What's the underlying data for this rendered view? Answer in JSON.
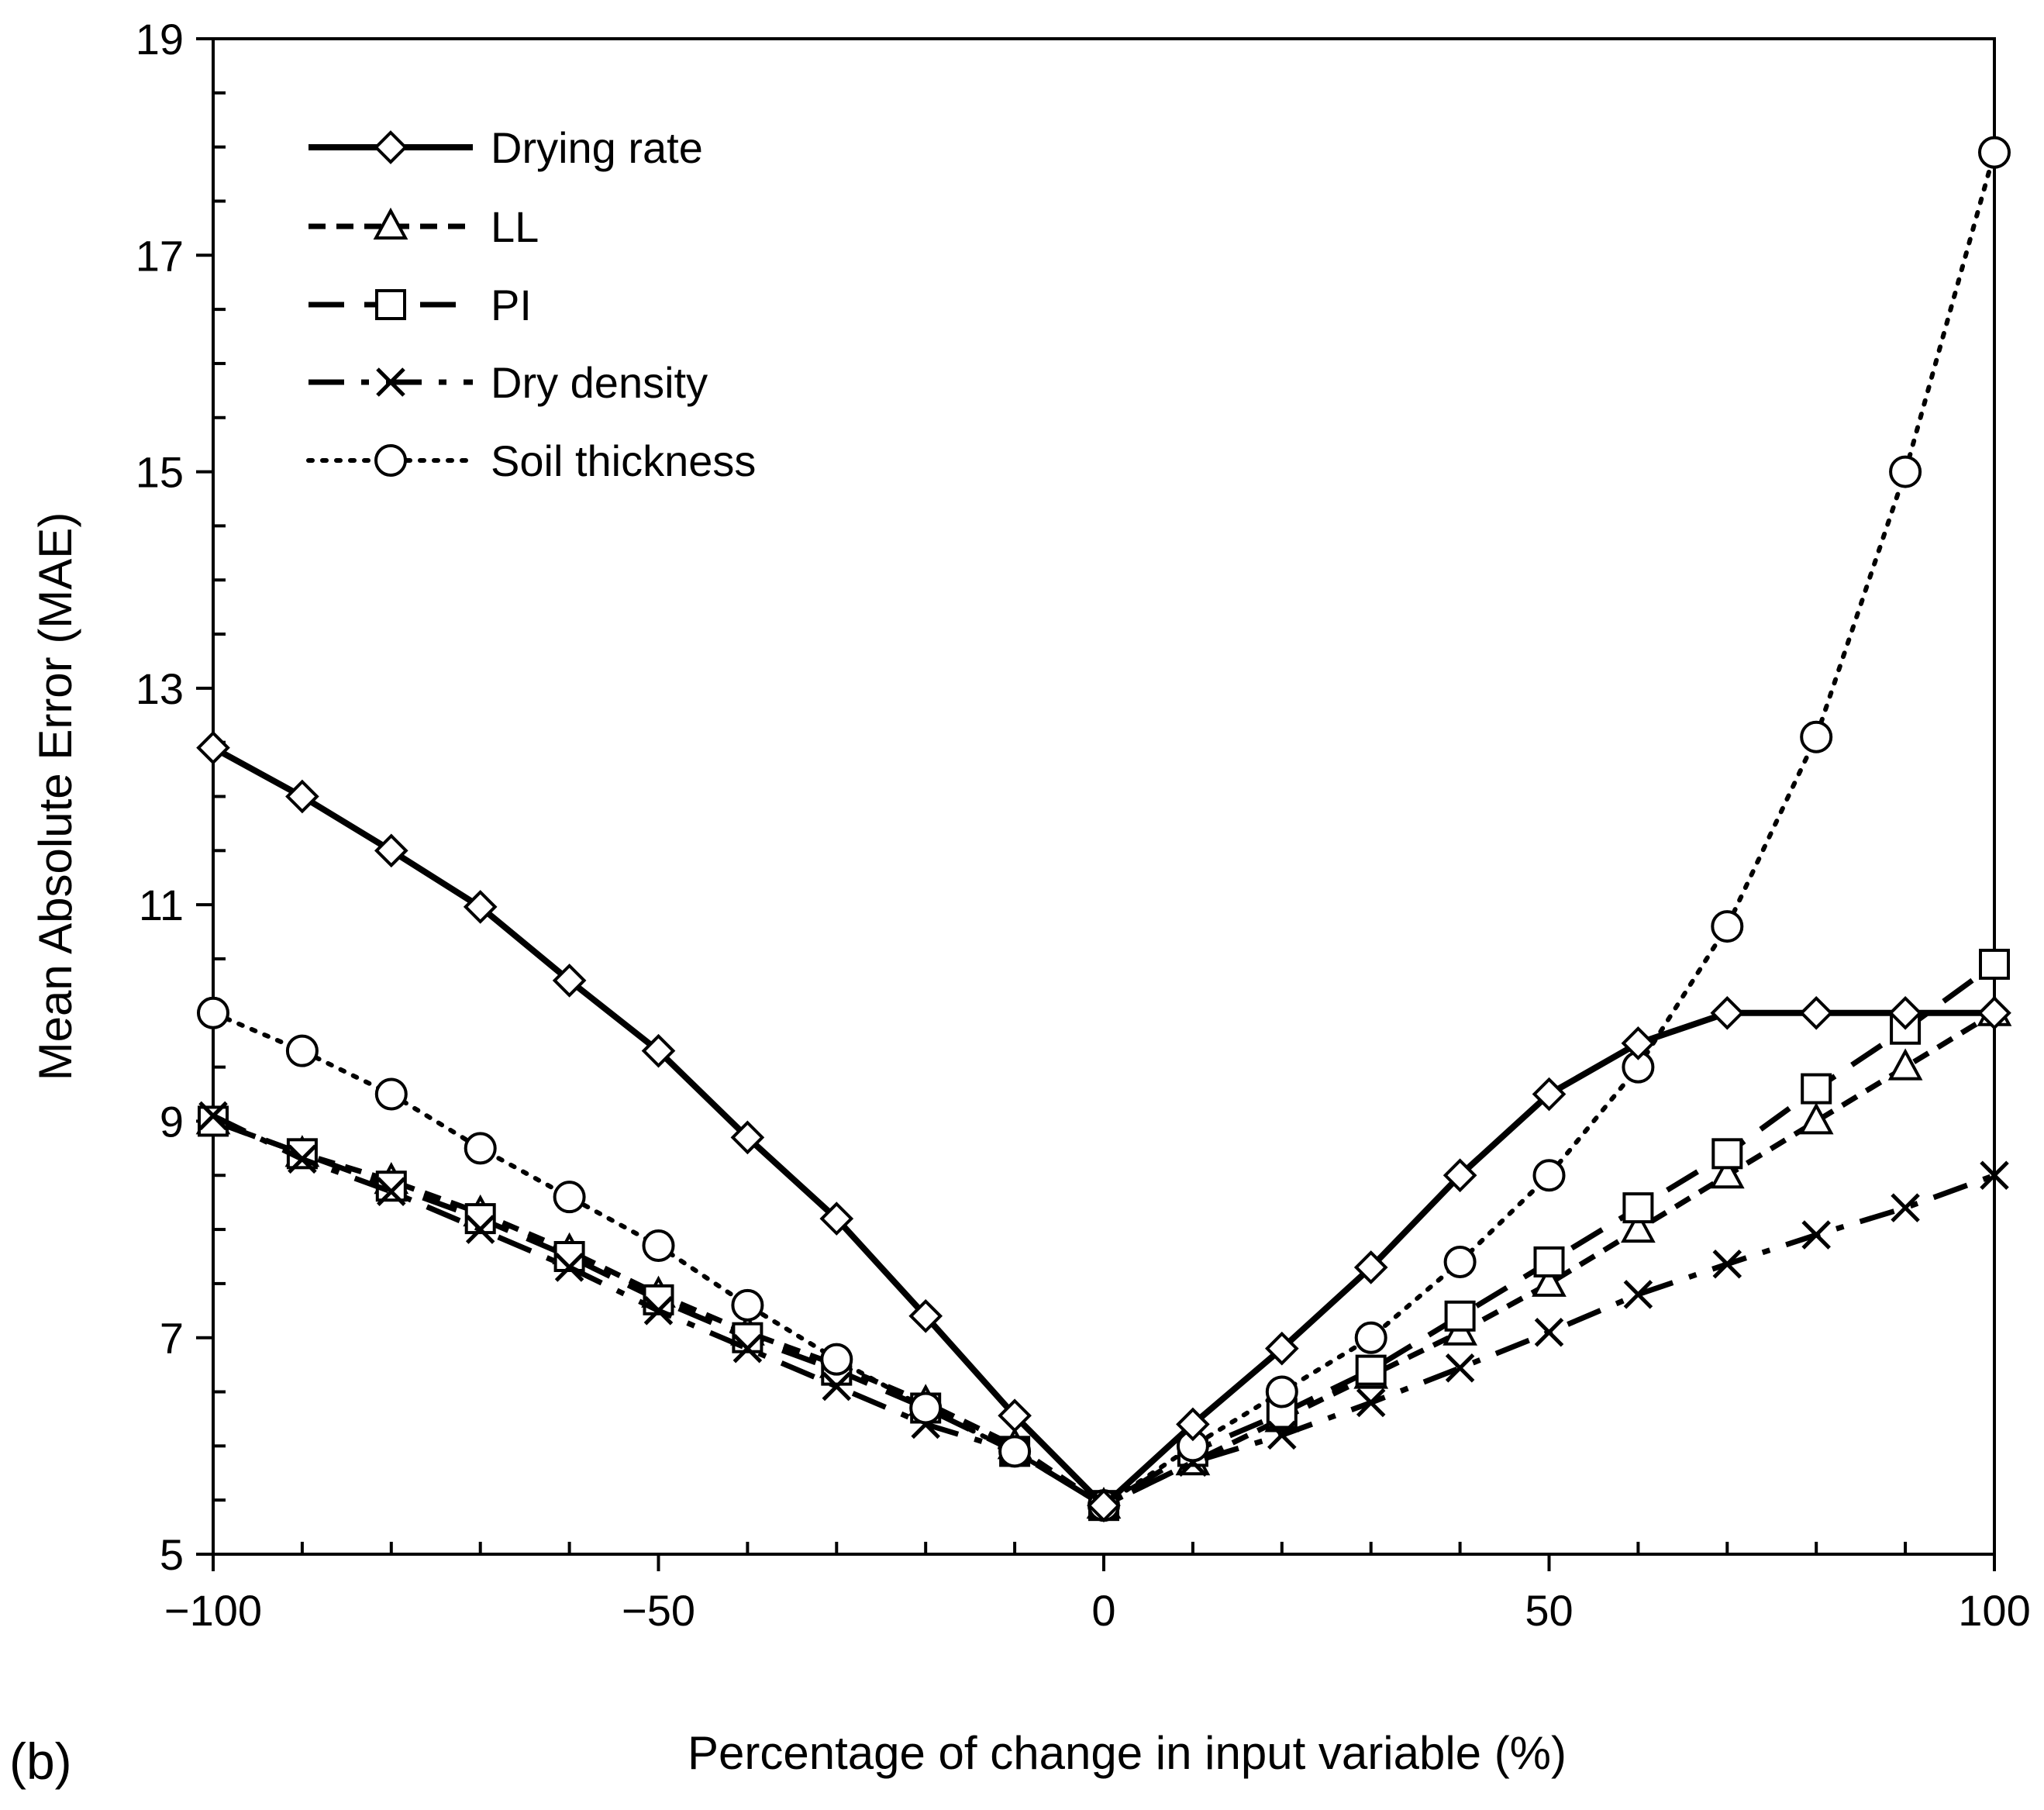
{
  "chart_data": {
    "type": "line",
    "panel_label": "(b)",
    "xlabel": "Percentage of change in input variable (%)",
    "ylabel": "Mean Absolute Error (MAE)",
    "xlim": [
      -100,
      100
    ],
    "ylim": [
      5,
      19
    ],
    "xticks": [
      -100,
      -50,
      0,
      50,
      100
    ],
    "xtick_labels": [
      "−100",
      "−50",
      "0",
      "50",
      "100"
    ],
    "yticks": [
      5,
      7,
      9,
      11,
      13,
      15,
      17,
      19
    ],
    "ytick_labels": [
      "5",
      "7",
      "9",
      "11",
      "13",
      "15",
      "17",
      "19"
    ],
    "grid": false,
    "legend_position": "top-left",
    "x": [
      -100,
      -90,
      -80,
      -70,
      -60,
      -50,
      -40,
      -30,
      -20,
      -10,
      0,
      10,
      20,
      30,
      40,
      50,
      60,
      70,
      80,
      90,
      100
    ],
    "series": [
      {
        "name": "Drying rate",
        "marker": "diamond",
        "line_style": "solid",
        "values": [
          12.45,
          12.0,
          11.5,
          10.98,
          10.3,
          9.65,
          8.85,
          8.1,
          7.2,
          6.28,
          5.45,
          6.2,
          6.9,
          7.65,
          8.5,
          9.25,
          9.72,
          10.0,
          10.0,
          10.0,
          10.0
        ]
      },
      {
        "name": "LL",
        "marker": "triangle",
        "line_style": "short-dash",
        "values": [
          9.0,
          8.7,
          8.45,
          8.15,
          7.8,
          7.4,
          7.05,
          6.75,
          6.4,
          6.0,
          5.45,
          5.85,
          6.25,
          6.65,
          7.05,
          7.5,
          8.0,
          8.5,
          9.0,
          9.5,
          10.0
        ]
      },
      {
        "name": "PI",
        "marker": "square",
        "line_style": "long-dash",
        "values": [
          9.0,
          8.7,
          8.4,
          8.1,
          7.75,
          7.35,
          7.0,
          6.7,
          6.35,
          5.95,
          5.45,
          5.95,
          6.3,
          6.7,
          7.2,
          7.7,
          8.2,
          8.7,
          9.3,
          9.85,
          10.45
        ]
      },
      {
        "name": "Dry density",
        "marker": "x",
        "line_style": "dash-dot",
        "values": [
          9.05,
          8.65,
          8.35,
          8.0,
          7.65,
          7.25,
          6.9,
          6.55,
          6.2,
          5.95,
          5.45,
          5.85,
          6.1,
          6.4,
          6.72,
          7.05,
          7.4,
          7.68,
          7.95,
          8.2,
          8.5
        ]
      },
      {
        "name": "Soil thickness",
        "marker": "circle",
        "line_style": "dotted",
        "values": [
          10.0,
          9.65,
          9.25,
          8.75,
          8.3,
          7.85,
          7.3,
          6.8,
          6.35,
          5.95,
          5.45,
          6.0,
          6.5,
          7.0,
          7.7,
          8.5,
          9.5,
          10.8,
          12.55,
          15.0,
          17.95
        ]
      }
    ]
  }
}
